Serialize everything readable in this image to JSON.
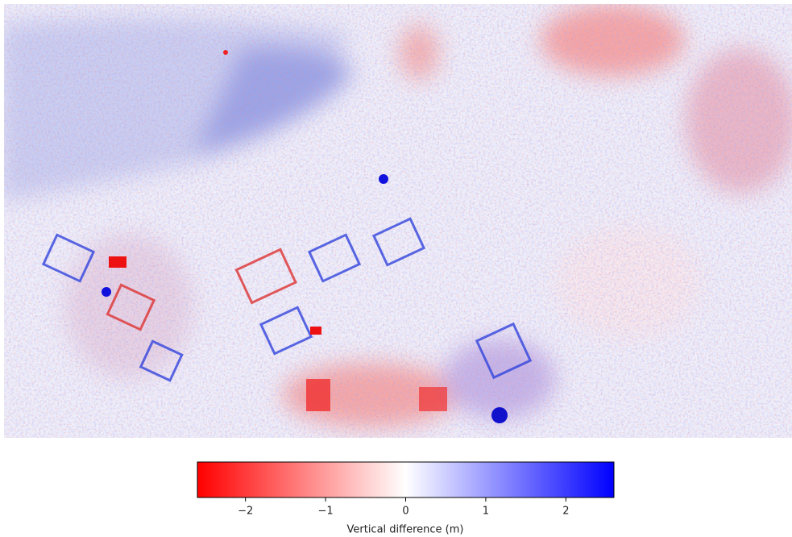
{
  "chart_data": {
    "type": "heatmap",
    "colorbar": {
      "label": "Vertical difference (m)",
      "lim": [
        -2.6,
        2.6
      ],
      "ticks": [
        {
          "value": -2,
          "label": "−2"
        },
        {
          "value": -1,
          "label": "−1"
        },
        0,
        1,
        2
      ],
      "colors": [
        "#ff0000",
        "#ffffff",
        "#0000ff"
      ]
    }
  }
}
